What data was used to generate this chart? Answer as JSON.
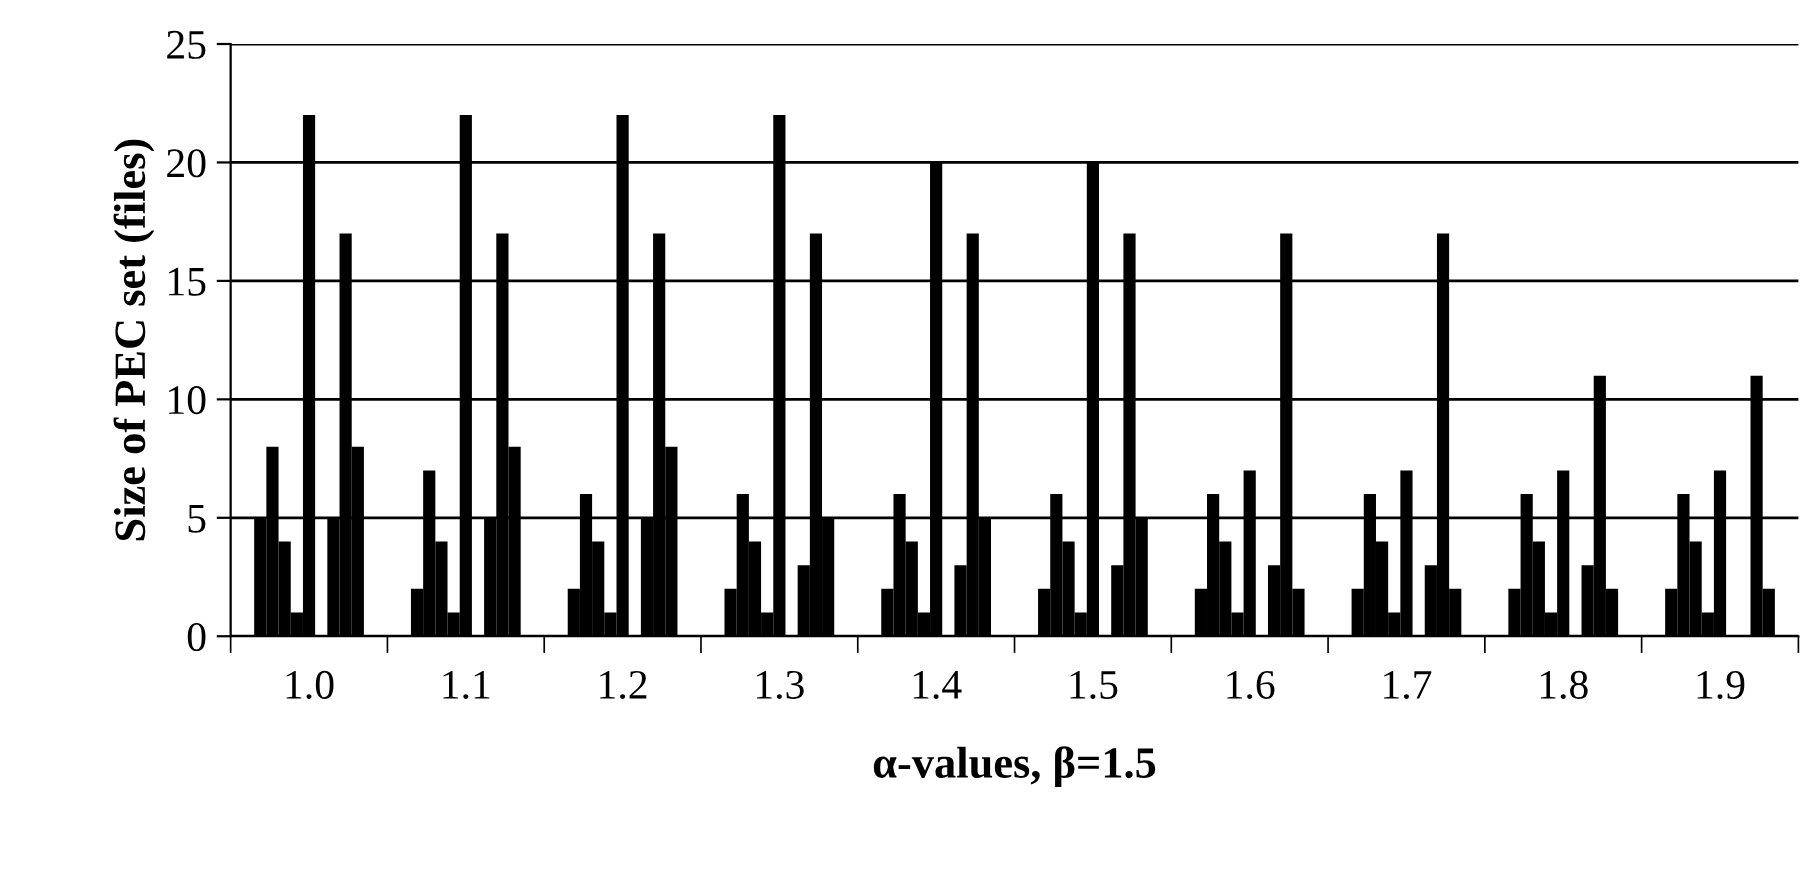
{
  "chart_data": {
    "type": "bar",
    "xlabel": "α-values, β=1.5",
    "ylabel": "Size of PEC set (files)",
    "categories": [
      "1.0",
      "1.1",
      "1.2",
      "1.3",
      "1.4",
      "1.5",
      "1.6",
      "1.7",
      "1.8",
      "1.9"
    ],
    "series": [
      {
        "color": "#000000",
        "values": [
          5,
          2,
          2,
          2,
          2,
          2,
          2,
          2,
          2,
          2
        ]
      },
      {
        "color": "#000000",
        "values": [
          8,
          7,
          6,
          6,
          6,
          6,
          6,
          6,
          6,
          6
        ]
      },
      {
        "color": "#000000",
        "values": [
          4,
          4,
          4,
          4,
          4,
          4,
          4,
          4,
          4,
          4
        ]
      },
      {
        "color": "#000000",
        "values": [
          1,
          1,
          1,
          1,
          1,
          1,
          1,
          1,
          1,
          1
        ]
      },
      {
        "color": "#000000",
        "values": [
          22,
          22,
          22,
          22,
          20,
          20,
          7,
          7,
          7,
          7
        ]
      },
      {
        "color": "#000000",
        "values": [
          0,
          0,
          0,
          0,
          0,
          0,
          0,
          0,
          0,
          0
        ]
      },
      {
        "color": "#000000",
        "values": [
          5,
          5,
          5,
          3,
          3,
          3,
          3,
          3,
          3,
          0
        ]
      },
      {
        "color": "#000000",
        "values": [
          17,
          17,
          17,
          17,
          17,
          17,
          17,
          17,
          11,
          11
        ]
      },
      {
        "color": "#000000",
        "values": [
          8,
          8,
          8,
          5,
          5,
          5,
          2,
          2,
          2,
          2
        ]
      }
    ],
    "ylim": [
      0,
      25
    ],
    "yticks": [
      0,
      5,
      10,
      15,
      20,
      25
    ],
    "grid": "y",
    "legend": false
  }
}
